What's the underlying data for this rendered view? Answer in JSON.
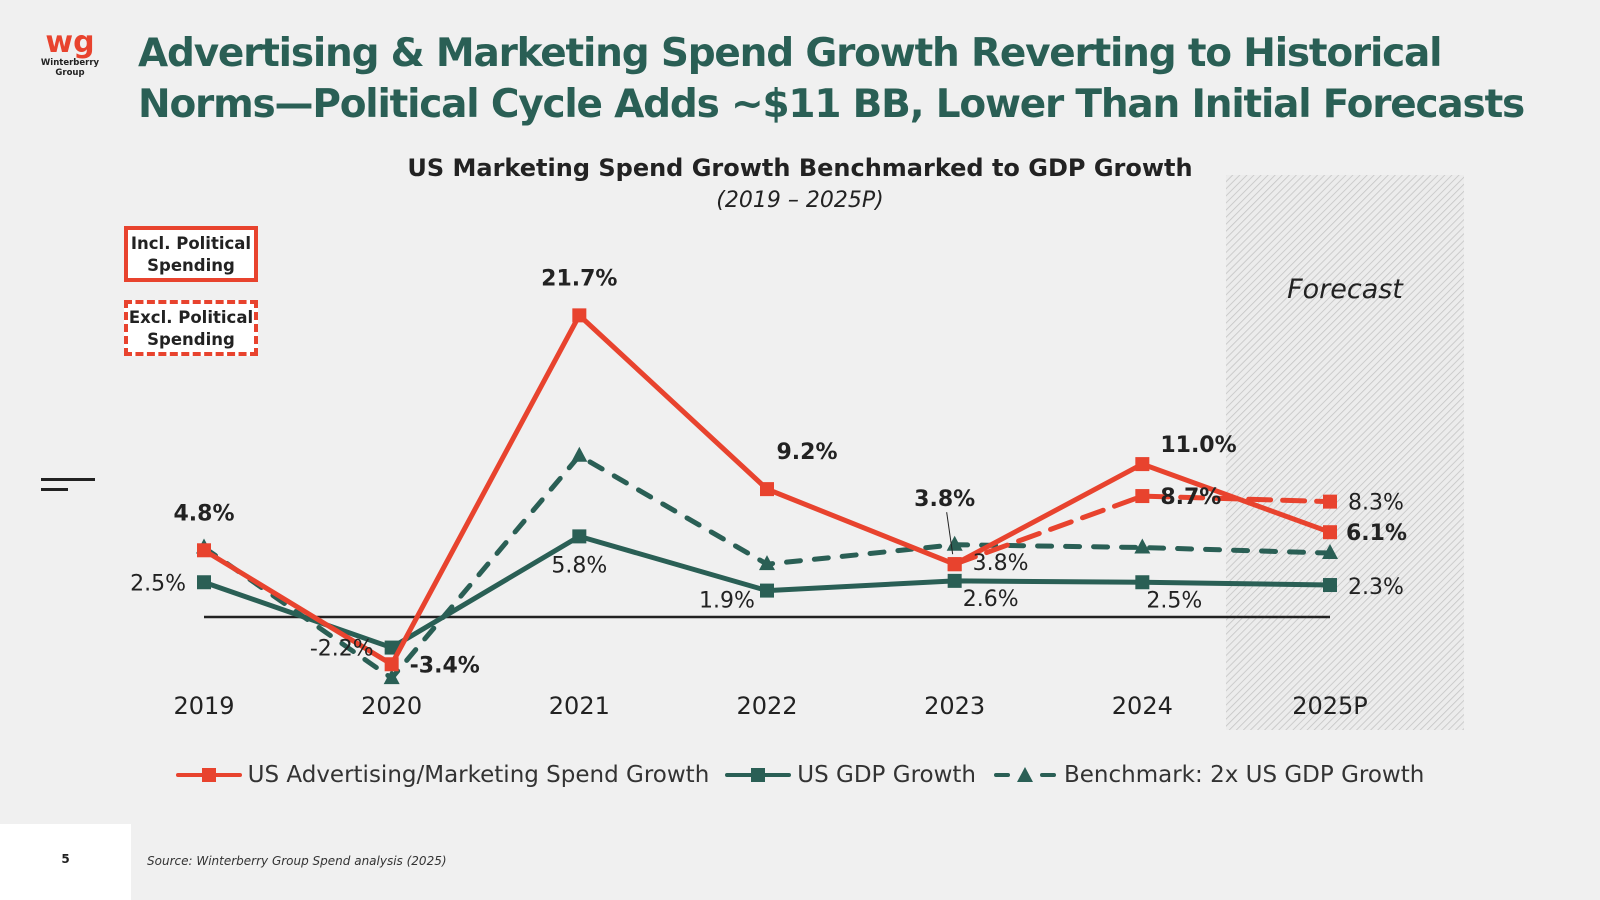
{
  "logo": {
    "mark": "wg",
    "name_line1": "Winterberry",
    "name_line2": "Group"
  },
  "title": {
    "line1": "Advertising & Marketing Spend Growth Reverting to Historical",
    "line2": "Norms—Political Cycle Adds ~$11 BB, Lower Than Initial Forecasts"
  },
  "key": {
    "incl_line1": "Incl. Political",
    "incl_line2": "Spending",
    "excl_line1": "Excl. Political",
    "excl_line2": "Spending"
  },
  "colors": {
    "red": "#e8432e",
    "green": "#2a5f55",
    "text": "#222222",
    "hatch": "#c8c8c8"
  },
  "chart_data": {
    "type": "line",
    "title": "US Marketing Spend Growth Benchmarked to GDP Growth",
    "subtitle": "(2019 – 2025P)",
    "xlabel": "",
    "ylabel": "",
    "categories": [
      "2019",
      "2020",
      "2021",
      "2022",
      "2023",
      "2024",
      "2025P"
    ],
    "ylim": [
      -4.5,
      22
    ],
    "grid": false,
    "forecast_region": {
      "label": "Forecast",
      "from": "2025P"
    },
    "series": [
      {
        "name": "US Advertising/Marketing Spend Growth",
        "variant": "Incl. Political Spending",
        "color": "#e8432e",
        "style": "solid",
        "marker": "square",
        "values": [
          4.8,
          -3.4,
          21.7,
          9.2,
          3.8,
          11.0,
          6.1
        ],
        "labels": [
          "4.8%",
          "-3.4%",
          "21.7%",
          "9.2%",
          "3.8%",
          "11.0%",
          "6.1%"
        ]
      },
      {
        "name": "US Advertising/Marketing Spend Growth",
        "variant": "Excl. Political Spending",
        "color": "#e8432e",
        "style": "dashed",
        "marker": "square",
        "values": [
          null,
          null,
          null,
          null,
          3.8,
          8.7,
          8.3
        ],
        "labels": [
          null,
          null,
          null,
          null,
          "3.8%",
          "8.7%",
          "8.3%"
        ]
      },
      {
        "name": "US GDP Growth",
        "color": "#2a5f55",
        "style": "solid",
        "marker": "square",
        "values": [
          2.5,
          -2.2,
          5.8,
          1.9,
          2.6,
          2.5,
          2.3
        ],
        "labels": [
          "2.5%",
          "-2.2%",
          "5.8%",
          "1.9%",
          "2.6%",
          "2.5%",
          "2.3%"
        ]
      },
      {
        "name": "Benchmark: 2x US GDP Growth",
        "color": "#2a5f55",
        "style": "dashed",
        "marker": "triangle",
        "values": [
          5.0,
          -4.4,
          11.6,
          3.8,
          5.2,
          5.0,
          4.6
        ],
        "labels": [
          null,
          null,
          null,
          null,
          null,
          null,
          null
        ]
      }
    ],
    "legend": {
      "placement": "bottom",
      "items": [
        "US Advertising/Marketing Spend Growth",
        "US GDP Growth",
        "Benchmark: 2x US GDP Growth"
      ]
    }
  },
  "footer": {
    "page": "5",
    "source": "Source: Winterberry Group Spend analysis (2025)"
  }
}
